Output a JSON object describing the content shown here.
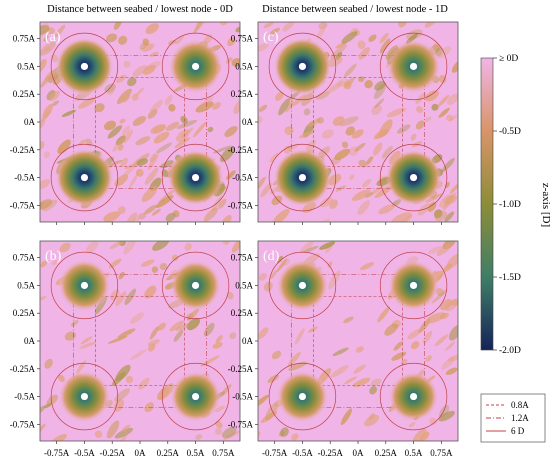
{
  "chart_data": [
    {
      "type": "heatmap",
      "label": "(a)",
      "title": "Distance between seabed / lowest node - 0D",
      "x_ticks": [
        "-0.75A",
        "-0.5A",
        "-0.25A",
        "0A",
        "0.25A",
        "0.5A",
        "0.75A"
      ],
      "y_ticks": [
        "0.75A",
        "0.5A",
        "0.25A",
        "0A",
        "-0.25A",
        "-0.5A",
        "-0.75A"
      ],
      "xlim": [
        -0.9,
        0.9
      ],
      "ylim": [
        -0.9,
        0.9
      ],
      "scour_holes": [
        {
          "x": -0.5,
          "y": 0.5,
          "min_depth": -2.0
        },
        {
          "x": 0.5,
          "y": 0.5,
          "min_depth": -1.7
        },
        {
          "x": -0.5,
          "y": -0.5,
          "min_depth": -2.0
        },
        {
          "x": 0.5,
          "y": -0.5,
          "min_depth": -1.8
        }
      ]
    },
    {
      "type": "heatmap",
      "label": "(c)",
      "title": "Distance between seabed / lowest node - 1D",
      "x_ticks": [
        "-0.75A",
        "-0.5A",
        "-0.25A",
        "0A",
        "0.25A",
        "0.5A",
        "0.75A"
      ],
      "y_ticks": [
        "0.75A",
        "0.5A",
        "0.25A",
        "0A",
        "-0.25A",
        "-0.5A",
        "-0.75A"
      ],
      "xlim": [
        -0.9,
        0.9
      ],
      "ylim": [
        -0.9,
        0.9
      ],
      "scour_holes": [
        {
          "x": -0.5,
          "y": 0.5,
          "min_depth": -2.0
        },
        {
          "x": 0.5,
          "y": 0.5,
          "min_depth": -1.7
        },
        {
          "x": -0.5,
          "y": -0.5,
          "min_depth": -2.0
        },
        {
          "x": 0.5,
          "y": -0.5,
          "min_depth": -1.8
        }
      ]
    },
    {
      "type": "heatmap",
      "label": "(b)",
      "title": "",
      "x_ticks": [
        "-0.75A",
        "-0.5A",
        "-0.25A",
        "0A",
        "0.25A",
        "0.5A",
        "0.75A"
      ],
      "y_ticks": [
        "0.75A",
        "0.5A",
        "0.25A",
        "0A",
        "-0.25A",
        "-0.5A",
        "-0.75A"
      ],
      "xlim": [
        -0.9,
        0.9
      ],
      "ylim": [
        -0.9,
        0.9
      ],
      "scour_holes": [
        {
          "x": -0.5,
          "y": 0.5,
          "min_depth": -1.5
        },
        {
          "x": 0.5,
          "y": 0.5,
          "min_depth": -1.4
        },
        {
          "x": -0.5,
          "y": -0.5,
          "min_depth": -1.5
        },
        {
          "x": 0.5,
          "y": -0.5,
          "min_depth": -1.4
        }
      ]
    },
    {
      "type": "heatmap",
      "label": "(d)",
      "title": "",
      "x_ticks": [
        "-0.75A",
        "-0.5A",
        "-0.25A",
        "0A",
        "0.25A",
        "0.5A",
        "0.75A"
      ],
      "y_ticks": [
        "0.75A",
        "0.5A",
        "0.25A",
        "0A",
        "-0.25A",
        "-0.5A",
        "-0.75A"
      ],
      "xlim": [
        -0.9,
        0.9
      ],
      "ylim": [
        -0.9,
        0.9
      ],
      "scour_holes": [
        {
          "x": -0.5,
          "y": 0.5,
          "min_depth": -1.5
        },
        {
          "x": 0.5,
          "y": 0.5,
          "min_depth": -1.4
        },
        {
          "x": -0.5,
          "y": -0.5,
          "min_depth": -1.5
        },
        {
          "x": 0.5,
          "y": -0.5,
          "min_depth": -1.3
        }
      ]
    }
  ],
  "colorbar": {
    "label": "z-axis [D]",
    "ticks": [
      "≥ 0D",
      "-0.5D",
      "-1.0D",
      "-1.5D",
      "-2.0D"
    ],
    "range": [
      0,
      -2.0
    ],
    "colors": [
      "#f0b5e6",
      "#d99468",
      "#8d8d38",
      "#3f7e66",
      "#15235a"
    ]
  },
  "legend": {
    "entries": [
      {
        "label": "0.8A",
        "style": "dashed",
        "color": "#c0404a"
      },
      {
        "label": "1.2A",
        "style": "dashdot",
        "color": "#c0404a"
      },
      {
        "label": "6 D",
        "style": "solid",
        "color": "#c0404a"
      }
    ]
  }
}
